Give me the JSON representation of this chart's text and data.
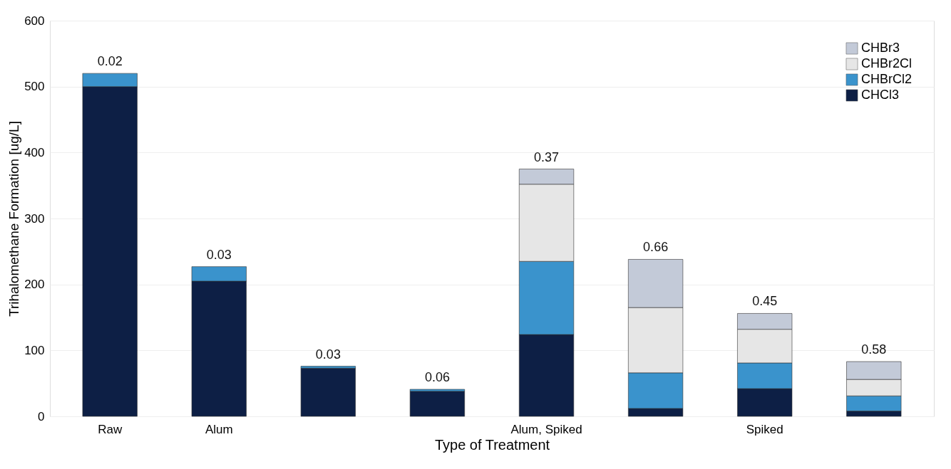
{
  "chart_data": {
    "type": "bar",
    "stacked": true,
    "xlabel": "Type of Treatment",
    "ylabel": "Trihalomethane Formation [ug/L]",
    "categories": [
      "Raw",
      "Alum",
      null,
      null,
      "Alum, Spiked",
      null,
      "Spiked",
      null
    ],
    "series": [
      {
        "name": "CHCl3",
        "color": "#0d1f45",
        "values": [
          500,
          205,
          73,
          38,
          124,
          12,
          42,
          8
        ]
      },
      {
        "name": "CHBrCl2",
        "color": "#3a93cc",
        "values": [
          20,
          22,
          3,
          3,
          111,
          54,
          39,
          23
        ]
      },
      {
        "name": "CHBr2Cl",
        "color": "#e6e6e6",
        "values": [
          null,
          null,
          null,
          null,
          117,
          99,
          51,
          25
        ]
      },
      {
        "name": "CHBr3",
        "color": "#c3cad8",
        "values": [
          null,
          null,
          null,
          null,
          23,
          73,
          24,
          27
        ]
      }
    ],
    "annotations": [
      {
        "text": "0.02",
        "x": "Raw",
        "y": 520
      },
      {
        "text": "0.03",
        "x": "Alum",
        "y": 227
      },
      {
        "text": "0.03",
        "y": 76
      },
      {
        "text": "0.06",
        "y": 41
      },
      {
        "text": "0.37",
        "x": "Alum, Spiked",
        "y": 375
      },
      {
        "text": "0.66",
        "y": 238
      },
      {
        "text": "0.45",
        "x": "Spiked",
        "y": 156
      },
      {
        "text": "0.58",
        "y": 83
      }
    ],
    "ylim": [
      0,
      600
    ],
    "yticks": [
      0,
      100,
      200,
      300,
      400,
      500,
      600
    ],
    "grid": "y",
    "legend": "top right"
  }
}
